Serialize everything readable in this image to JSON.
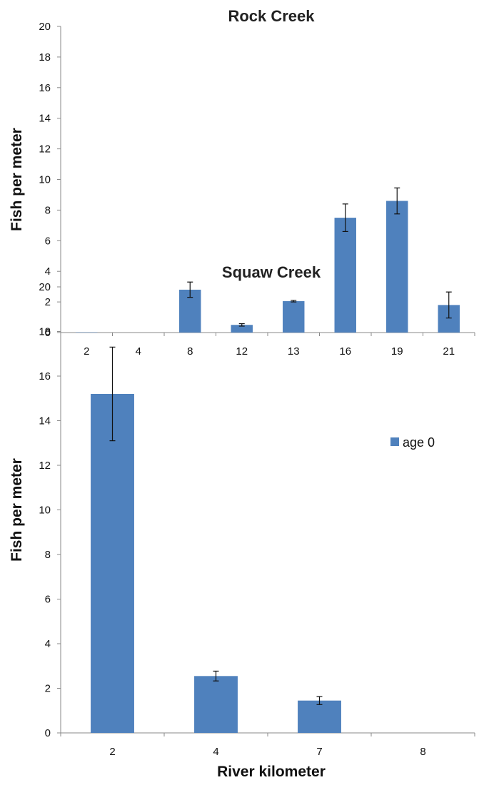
{
  "chart_data": [
    {
      "type": "bar",
      "title": "Rock Creek",
      "ylabel": "Fish per meter",
      "xlabel": "",
      "ylim": [
        0,
        20
      ],
      "yticks": [
        0,
        2,
        4,
        6,
        8,
        10,
        12,
        14,
        16,
        18,
        20
      ],
      "categories": [
        "2",
        "4",
        "8",
        "12",
        "13",
        "16",
        "19",
        "21"
      ],
      "series": [
        {
          "name": "age 0",
          "values": [
            0.02,
            0,
            2.8,
            0.5,
            2.05,
            7.5,
            8.6,
            1.8
          ],
          "errors": [
            0,
            0,
            0.5,
            0.08,
            0.05,
            0.9,
            0.85,
            0.85
          ]
        }
      ],
      "bar_color": "#4f81bd",
      "legend": "none"
    },
    {
      "type": "bar",
      "title": "Squaw Creek",
      "ylabel": "Fish per meter",
      "xlabel": "River kilometer",
      "ylim": [
        0,
        20
      ],
      "yticks": [
        0,
        2,
        4,
        6,
        8,
        10,
        12,
        14,
        16,
        18,
        20
      ],
      "categories": [
        "2",
        "4",
        "7",
        "8"
      ],
      "series": [
        {
          "name": "age 0",
          "values": [
            15.2,
            2.55,
            1.45,
            0
          ],
          "errors": [
            2.1,
            0.22,
            0.18,
            0
          ]
        }
      ],
      "bar_color": "#4f81bd",
      "legend": "top-right"
    }
  ]
}
